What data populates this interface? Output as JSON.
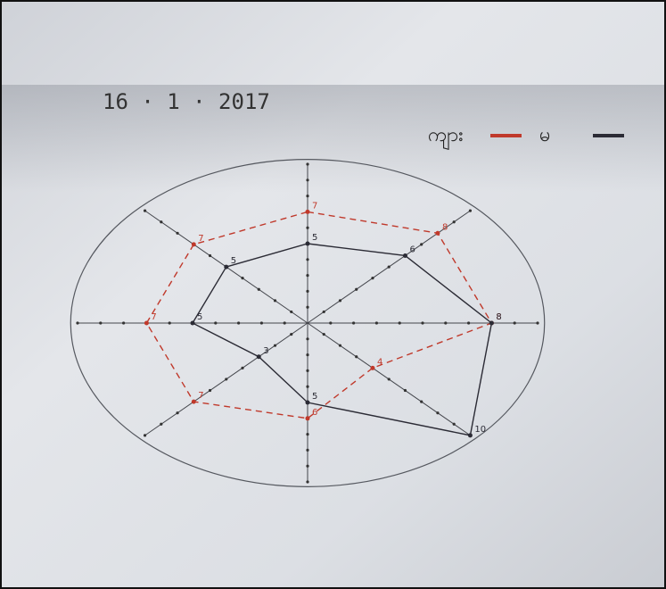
{
  "chart_data": {
    "type": "radar",
    "categories": [
      null,
      null,
      null,
      null,
      null,
      null,
      null,
      null
    ],
    "series": [
      {
        "name": "ကျား",
        "color": "#c0392b",
        "values": [
          7,
          8,
          8,
          4,
          6,
          7,
          7,
          7
        ]
      },
      {
        "name": "မ",
        "color": "#2b2b35",
        "values": [
          5,
          6,
          8,
          10,
          5,
          3,
          5,
          5
        ]
      }
    ],
    "rlim": [
      0,
      10
    ],
    "rticks": [
      1,
      2,
      3,
      4,
      5,
      6,
      7,
      8,
      9,
      10
    ],
    "date": "16 · 1 · 2017",
    "legend": "upper right"
  }
}
